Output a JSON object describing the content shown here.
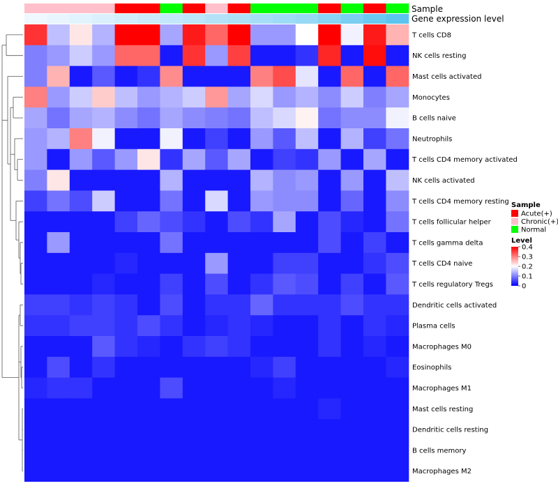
{
  "chart_data": {
    "type": "heatmap",
    "rows": [
      "T cells CD8",
      "NK cells resting",
      "Mast cells activated",
      "Monocytes",
      "B cells naive",
      "Neutrophils",
      "T cells CD4 memory activated",
      "NK cells activated",
      "T cells CD4 memory resting",
      "T cells follicular helper",
      "T cells gamma delta",
      "T cells CD4 naive",
      "T cells regulatory  Tregs",
      "Dendritic cells activated",
      "Plasma cells",
      "Macrophages M0",
      "Eosinophils",
      "Macrophages M1",
      "Mast cells resting",
      "Dendritic cells resting",
      "B cells memory",
      "Macrophages M2"
    ],
    "n_columns": 17,
    "values": [
      [
        0.36,
        0.15,
        0.22,
        0.14,
        0.4,
        0.4,
        0.13,
        0.38,
        0.32,
        0.4,
        0.12,
        0.12,
        0.2,
        0.4,
        0.19,
        0.38,
        0.26
      ],
      [
        0.1,
        0.12,
        0.16,
        0.12,
        0.32,
        0.32,
        0.02,
        0.36,
        0.12,
        0.35,
        0.02,
        0.02,
        0.04,
        0.37,
        0.02,
        0.39,
        0.02
      ],
      [
        0.1,
        0.26,
        0.02,
        0.07,
        0.02,
        0.04,
        0.29,
        0.02,
        0.02,
        0.02,
        0.3,
        0.34,
        0.18,
        0.02,
        0.32,
        0.02,
        0.32
      ],
      [
        0.3,
        0.12,
        0.16,
        0.24,
        0.15,
        0.12,
        0.14,
        0.16,
        0.28,
        0.13,
        0.17,
        0.12,
        0.14,
        0.11,
        0.16,
        0.1,
        0.13
      ],
      [
        0.13,
        0.09,
        0.13,
        0.14,
        0.11,
        0.09,
        0.13,
        0.11,
        0.1,
        0.09,
        0.15,
        0.17,
        0.21,
        0.09,
        0.11,
        0.11,
        0.19
      ],
      [
        0.12,
        0.14,
        0.3,
        0.19,
        0.02,
        0.02,
        0.19,
        0.02,
        0.05,
        0.02,
        0.12,
        0.07,
        0.15,
        0.02,
        0.14,
        0.05,
        0.09
      ],
      [
        0.12,
        0.02,
        0.12,
        0.07,
        0.12,
        0.22,
        0.04,
        0.13,
        0.07,
        0.13,
        0.02,
        0.05,
        0.04,
        0.12,
        0.02,
        0.13,
        0.02
      ],
      [
        0.1,
        0.22,
        0.02,
        0.02,
        0.02,
        0.02,
        0.14,
        0.02,
        0.02,
        0.02,
        0.14,
        0.11,
        0.12,
        0.02,
        0.12,
        0.02,
        0.15
      ],
      [
        0.05,
        0.09,
        0.06,
        0.16,
        0.02,
        0.02,
        0.09,
        0.02,
        0.17,
        0.02,
        0.12,
        0.11,
        0.11,
        0.02,
        0.08,
        0.02,
        0.11
      ],
      [
        0.02,
        0.02,
        0.02,
        0.02,
        0.05,
        0.08,
        0.06,
        0.04,
        0.02,
        0.06,
        0.04,
        0.13,
        0.02,
        0.06,
        0.03,
        0.02,
        0.09
      ],
      [
        0.02,
        0.12,
        0.02,
        0.02,
        0.02,
        0.02,
        0.09,
        0.02,
        0.02,
        0.02,
        0.02,
        0.02,
        0.02,
        0.06,
        0.02,
        0.05,
        0.02
      ],
      [
        0.02,
        0.02,
        0.02,
        0.02,
        0.03,
        0.02,
        0.02,
        0.02,
        0.12,
        0.02,
        0.02,
        0.05,
        0.05,
        0.02,
        0.02,
        0.04,
        0.06
      ],
      [
        0.02,
        0.02,
        0.02,
        0.03,
        0.02,
        0.02,
        0.05,
        0.02,
        0.06,
        0.02,
        0.04,
        0.07,
        0.06,
        0.02,
        0.05,
        0.02,
        0.07
      ],
      [
        0.05,
        0.05,
        0.04,
        0.05,
        0.04,
        0.02,
        0.06,
        0.02,
        0.04,
        0.04,
        0.08,
        0.04,
        0.04,
        0.04,
        0.06,
        0.04,
        0.04
      ],
      [
        0.04,
        0.04,
        0.05,
        0.05,
        0.04,
        0.06,
        0.04,
        0.02,
        0.03,
        0.04,
        0.03,
        0.02,
        0.02,
        0.04,
        0.02,
        0.04,
        0.03
      ],
      [
        0.02,
        0.02,
        0.02,
        0.07,
        0.04,
        0.03,
        0.02,
        0.04,
        0.05,
        0.04,
        0.02,
        0.02,
        0.02,
        0.04,
        0.02,
        0.03,
        0.02
      ],
      [
        0.02,
        0.06,
        0.02,
        0.04,
        0.02,
        0.02,
        0.02,
        0.02,
        0.02,
        0.02,
        0.03,
        0.05,
        0.02,
        0.02,
        0.02,
        0.02,
        0.03
      ],
      [
        0.03,
        0.04,
        0.04,
        0.02,
        0.02,
        0.02,
        0.06,
        0.02,
        0.02,
        0.02,
        0.02,
        0.03,
        0.02,
        0.02,
        0.02,
        0.02,
        0.02
      ],
      [
        0.02,
        0.02,
        0.02,
        0.02,
        0.02,
        0.02,
        0.02,
        0.02,
        0.02,
        0.02,
        0.02,
        0.02,
        0.02,
        0.03,
        0.02,
        0.02,
        0.02
      ],
      [
        0.02,
        0.02,
        0.02,
        0.02,
        0.02,
        0.02,
        0.02,
        0.02,
        0.02,
        0.02,
        0.02,
        0.02,
        0.02,
        0.02,
        0.02,
        0.02,
        0.02
      ],
      [
        0.02,
        0.02,
        0.02,
        0.02,
        0.02,
        0.02,
        0.02,
        0.02,
        0.02,
        0.02,
        0.02,
        0.02,
        0.02,
        0.02,
        0.02,
        0.02,
        0.02
      ],
      [
        0.02,
        0.02,
        0.02,
        0.02,
        0.02,
        0.02,
        0.02,
        0.02,
        0.02,
        0.02,
        0.02,
        0.02,
        0.02,
        0.02,
        0.02,
        0.02,
        0.02
      ]
    ],
    "column_annotations": {
      "sample": {
        "label": "Sample",
        "values": [
          "Chronic(+)",
          "Chronic(+)",
          "Chronic(+)",
          "Chronic(+)",
          "Acute(+)",
          "Acute(+)",
          "Normal",
          "Acute(+)",
          "Chronic(+)",
          "Acute(+)",
          "Normal",
          "Normal",
          "Normal",
          "Acute(+)",
          "Normal",
          "Acute(+)",
          "Normal"
        ]
      },
      "gene_expression": {
        "label": "Gene expression level",
        "values": [
          0.0,
          0.05,
          0.1,
          0.15,
          0.2,
          0.25,
          0.3,
          0.35,
          0.4,
          0.45,
          0.5,
          0.55,
          0.6,
          0.7,
          0.8,
          0.9,
          1.0
        ]
      }
    },
    "color_scale": {
      "low": 0,
      "mid": 0.2,
      "high": 0.4,
      "colors": [
        "#0000ff",
        "#ffffff",
        "#ff0000"
      ]
    },
    "legends": {
      "sample": {
        "title": "Sample",
        "items": [
          {
            "label": "Acute(+)",
            "color": "#ff0000"
          },
          {
            "label": "Chronic(+)",
            "color": "#ffc0cb"
          },
          {
            "label": "Normal",
            "color": "#00ff00"
          }
        ]
      },
      "level": {
        "title": "Level",
        "ticks": [
          "0.4",
          "0.3",
          "0.2",
          "0.1",
          "0"
        ],
        "range": [
          0,
          0.4
        ]
      }
    }
  },
  "colors": {
    "acute": "#ff0000",
    "chronic": "#ffc0cb",
    "normal": "#00ff00",
    "expr_low": "#f0f8ff",
    "expr_high": "#5bc4ef"
  }
}
